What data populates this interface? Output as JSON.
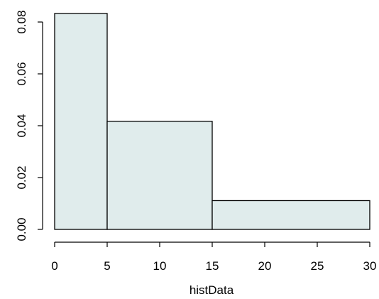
{
  "chart_data": {
    "type": "bar",
    "subtype": "histogram",
    "bins": [
      {
        "start": 0,
        "end": 5,
        "density": 0.0833
      },
      {
        "start": 5,
        "end": 15,
        "density": 0.0417
      },
      {
        "start": 15,
        "end": 30,
        "density": 0.0111
      }
    ],
    "xlabel": "histData",
    "ylabel": "",
    "xlim": [
      0,
      30
    ],
    "ylim": [
      0,
      0.085
    ],
    "x_ticks": [
      0,
      5,
      10,
      15,
      20,
      25,
      30
    ],
    "x_tick_labels": [
      "0",
      "5",
      "10",
      "15",
      "20",
      "25",
      "30"
    ],
    "y_ticks": [
      0,
      0.02,
      0.04,
      0.06,
      0.08
    ],
    "y_tick_labels": [
      "0.00",
      "0.02",
      "0.04",
      "0.06",
      "0.08"
    ],
    "bar_color": "#e0ecec",
    "grid": false,
    "legend": "none"
  }
}
